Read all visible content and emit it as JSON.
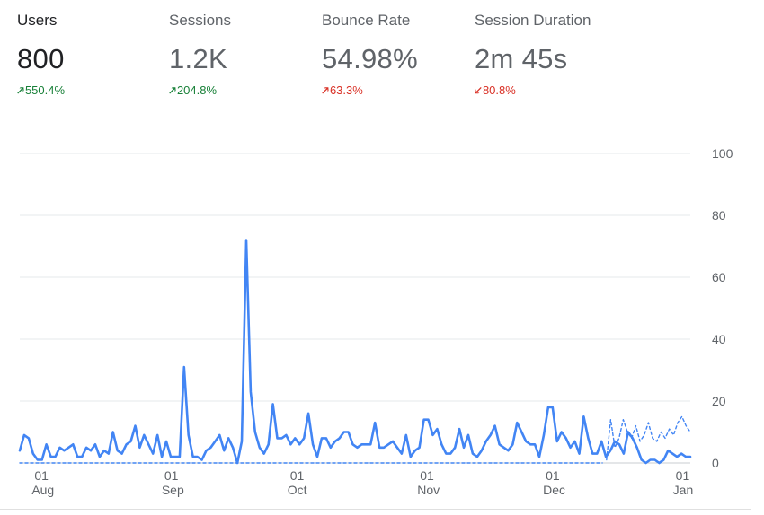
{
  "metrics": [
    {
      "label": "Users",
      "value": "800",
      "change": "550.4%",
      "direction": "up",
      "status_color": "#188038"
    },
    {
      "label": "Sessions",
      "value": "1.2K",
      "change": "204.8%",
      "direction": "up",
      "status_color": "#188038"
    },
    {
      "label": "Bounce Rate",
      "value": "54.98%",
      "change": "63.3%",
      "direction": "up",
      "status_color": "#d93025"
    },
    {
      "label": "Session Duration",
      "value": "2m 45s",
      "change": "80.8%",
      "direction": "down",
      "status_color": "#d93025"
    }
  ],
  "chart_data": {
    "type": "line",
    "y_ticks": [
      "100",
      "80",
      "60",
      "40",
      "20",
      "0"
    ],
    "ylim": [
      0,
      100
    ],
    "x_ticks": [
      {
        "day": "01",
        "month": "Aug"
      },
      {
        "day": "01",
        "month": "Sep"
      },
      {
        "day": "01",
        "month": "Oct"
      },
      {
        "day": "01",
        "month": "Nov"
      },
      {
        "day": "01",
        "month": "Dec"
      },
      {
        "day": "01",
        "month": "Jan"
      }
    ],
    "series": [
      {
        "style": "solid",
        "color": "#4285f4",
        "start_date": "Jul 27",
        "end_date": "Jan 03",
        "values": [
          4,
          9,
          8,
          3,
          1,
          1,
          6,
          2,
          2,
          5,
          4,
          5,
          6,
          2,
          2,
          5,
          4,
          6,
          2,
          4,
          3,
          10,
          4,
          3,
          6,
          7,
          12,
          5,
          9,
          6,
          3,
          9,
          2,
          7,
          2,
          2,
          2,
          31,
          9,
          2,
          2,
          1,
          4,
          5,
          7,
          9,
          4,
          8,
          5,
          0,
          7,
          72,
          23,
          10,
          5,
          3,
          6,
          19,
          8,
          8,
          9,
          6,
          8,
          6,
          8,
          16,
          6,
          2,
          8,
          8,
          5,
          7,
          8,
          10,
          10,
          6,
          5,
          6,
          6,
          6,
          13,
          5,
          5,
          6,
          7,
          5,
          3,
          9,
          2,
          4,
          5,
          14,
          14,
          9,
          11,
          6,
          3,
          3,
          5,
          11,
          5,
          9,
          3,
          2,
          4,
          7,
          9,
          12,
          6,
          5,
          4,
          6,
          13,
          10,
          7,
          6,
          6,
          2,
          9,
          18,
          18,
          7,
          10,
          8,
          5,
          7,
          3,
          15,
          8,
          3,
          3,
          7,
          2,
          4,
          7,
          6,
          3,
          10,
          8,
          5,
          1,
          0,
          1,
          1,
          0,
          1,
          4,
          3,
          2,
          3,
          2,
          2
        ]
      },
      {
        "style": "dashed",
        "color": "#4285f4",
        "start_date": "Dec 14",
        "end_date": "Jan 03",
        "values": [
          1,
          14,
          5,
          8,
          14,
          10,
          8,
          12,
          7,
          9,
          13,
          8,
          7,
          10,
          8,
          11,
          9,
          13,
          15,
          12,
          10
        ]
      },
      {
        "style": "dashed",
        "color": "#4285f4",
        "start_date": "Jul 27",
        "end_date": "Dec 13",
        "values": [
          0
        ]
      }
    ]
  }
}
